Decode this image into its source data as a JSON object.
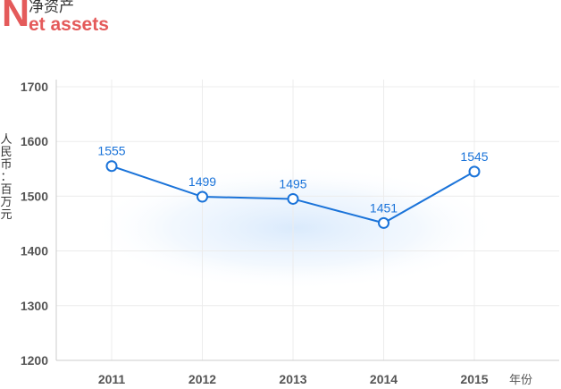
{
  "title": {
    "initial": "N",
    "chinese": "净资产",
    "english_rest": "et assets"
  },
  "chart_data": {
    "type": "line",
    "title": "净资产 Net assets",
    "categories": [
      "2011",
      "2012",
      "2013",
      "2014",
      "2015"
    ],
    "series": [
      {
        "values": [
          1555,
          1499,
          1495,
          1451,
          1545
        ]
      }
    ],
    "data_labels": [
      "1555",
      "1499",
      "1495",
      "1451",
      "1545"
    ],
    "ylabel": "人民币：百万元",
    "xunit": "年份",
    "ylim": [
      1200,
      1700
    ],
    "yticks": [
      1200,
      1300,
      1400,
      1500,
      1600,
      1700
    ],
    "grid": true,
    "line_color": "#1a73d9",
    "title_color": "#e45a5a"
  }
}
